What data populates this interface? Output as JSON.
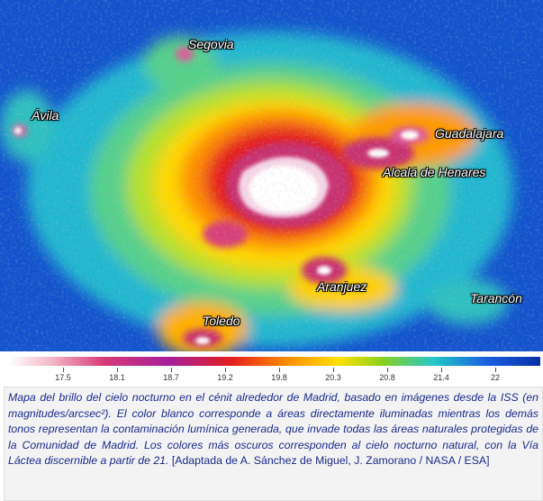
{
  "map": {
    "cities": [
      {
        "name": "Segovia"
      },
      {
        "name": "Ávila"
      },
      {
        "name": "Guadalajara"
      },
      {
        "name": "Alcalá de Henares"
      },
      {
        "name": "Aranjuez"
      },
      {
        "name": "Tarancón"
      },
      {
        "name": "Toledo"
      }
    ],
    "colors": {
      "background": "#0a3fc0",
      "bright_core": "#ffffff"
    }
  },
  "colorbar": {
    "ticks": [
      "17.5",
      "18.1",
      "18.7",
      "19.2",
      "19.8",
      "20.3",
      "20.8",
      "21.4",
      "22"
    ],
    "colors": [
      "#ffffff",
      "#d83a78",
      "#a61f9a",
      "#e51f1f",
      "#ff8a00",
      "#ffe100",
      "#8fd11e",
      "#22c7c7",
      "#1a5ee0",
      "#0a2fa8"
    ]
  },
  "caption": {
    "italic_text": "Mapa del brillo del cielo nocturno en el cénit alrededor de Madrid, basado en imágenes desde la ISS (en magnitudes/arcsec²). El color blanco corresponde a áreas directamente iluminadas mientras los demás tonos representan la contaminación lumínica generada, que invade todas las áreas naturales protegidas de la Comunidad de Madrid. Los colores más oscuros corresponden al cielo nocturno natural, con la Vía Láctea discernible a partir de 21.",
    "credit": " [Adaptada de A. Sánchez de Miguel, J. Zamorano / NASA / ESA]"
  }
}
